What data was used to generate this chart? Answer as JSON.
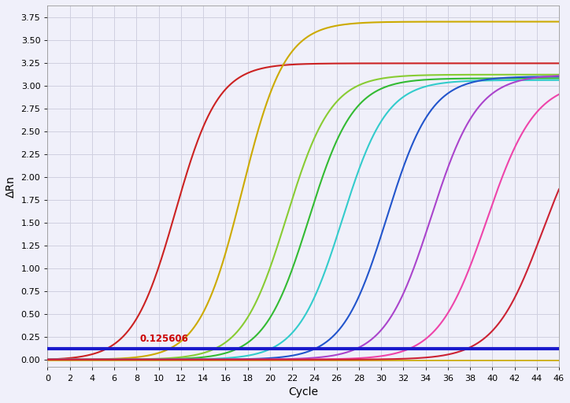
{
  "title": "",
  "xlabel": "Cycle",
  "ylabel": "ΔRn",
  "xlim": [
    0,
    46
  ],
  "ylim": [
    -0.08,
    3.88
  ],
  "yticks": [
    0.0,
    0.25,
    0.5,
    0.75,
    1.0,
    1.25,
    1.5,
    1.75,
    2.0,
    2.25,
    2.5,
    2.75,
    3.0,
    3.25,
    3.5,
    3.75
  ],
  "xticks": [
    0,
    2,
    4,
    6,
    8,
    10,
    12,
    14,
    16,
    18,
    20,
    22,
    24,
    26,
    28,
    30,
    32,
    34,
    36,
    38,
    40,
    42,
    44,
    46
  ],
  "threshold_y": 0.125606,
  "threshold_color": "#1a1acc",
  "threshold_label_color": "#cc0000",
  "background_color": "#f0f0fa",
  "grid_color": "#d0d0e0",
  "curves": [
    {
      "color": "#cc2222",
      "midpoint": 11.5,
      "plateau": 3.25,
      "steepness": 0.52,
      "baseline": 0.005
    },
    {
      "color": "#ccaa00",
      "midpoint": 17.5,
      "plateau": 3.7,
      "steepness": 0.52,
      "baseline": 0.003
    },
    {
      "color": "#88cc33",
      "midpoint": 21.5,
      "plateau": 3.12,
      "steepness": 0.5,
      "baseline": 0.003
    },
    {
      "color": "#33bb33",
      "midpoint": 23.5,
      "plateau": 3.08,
      "steepness": 0.5,
      "baseline": 0.003
    },
    {
      "color": "#33cccc",
      "midpoint": 26.5,
      "plateau": 3.06,
      "steepness": 0.5,
      "baseline": 0.003
    },
    {
      "color": "#2255cc",
      "midpoint": 30.5,
      "plateau": 3.1,
      "steepness": 0.5,
      "baseline": 0.003
    },
    {
      "color": "#aa44cc",
      "midpoint": 34.5,
      "plateau": 3.12,
      "steepness": 0.48,
      "baseline": 0.003
    },
    {
      "color": "#ee44aa",
      "midpoint": 39.5,
      "plateau": 3.05,
      "steepness": 0.46,
      "baseline": 0.003
    },
    {
      "color": "#cc2233",
      "midpoint": 44.5,
      "plateau": 2.8,
      "steepness": 0.46,
      "baseline": 0.003
    },
    {
      "color": "#ccaa00",
      "midpoint": 999,
      "plateau": 0.0,
      "steepness": 0.0,
      "baseline": -0.01,
      "flat": true
    }
  ]
}
